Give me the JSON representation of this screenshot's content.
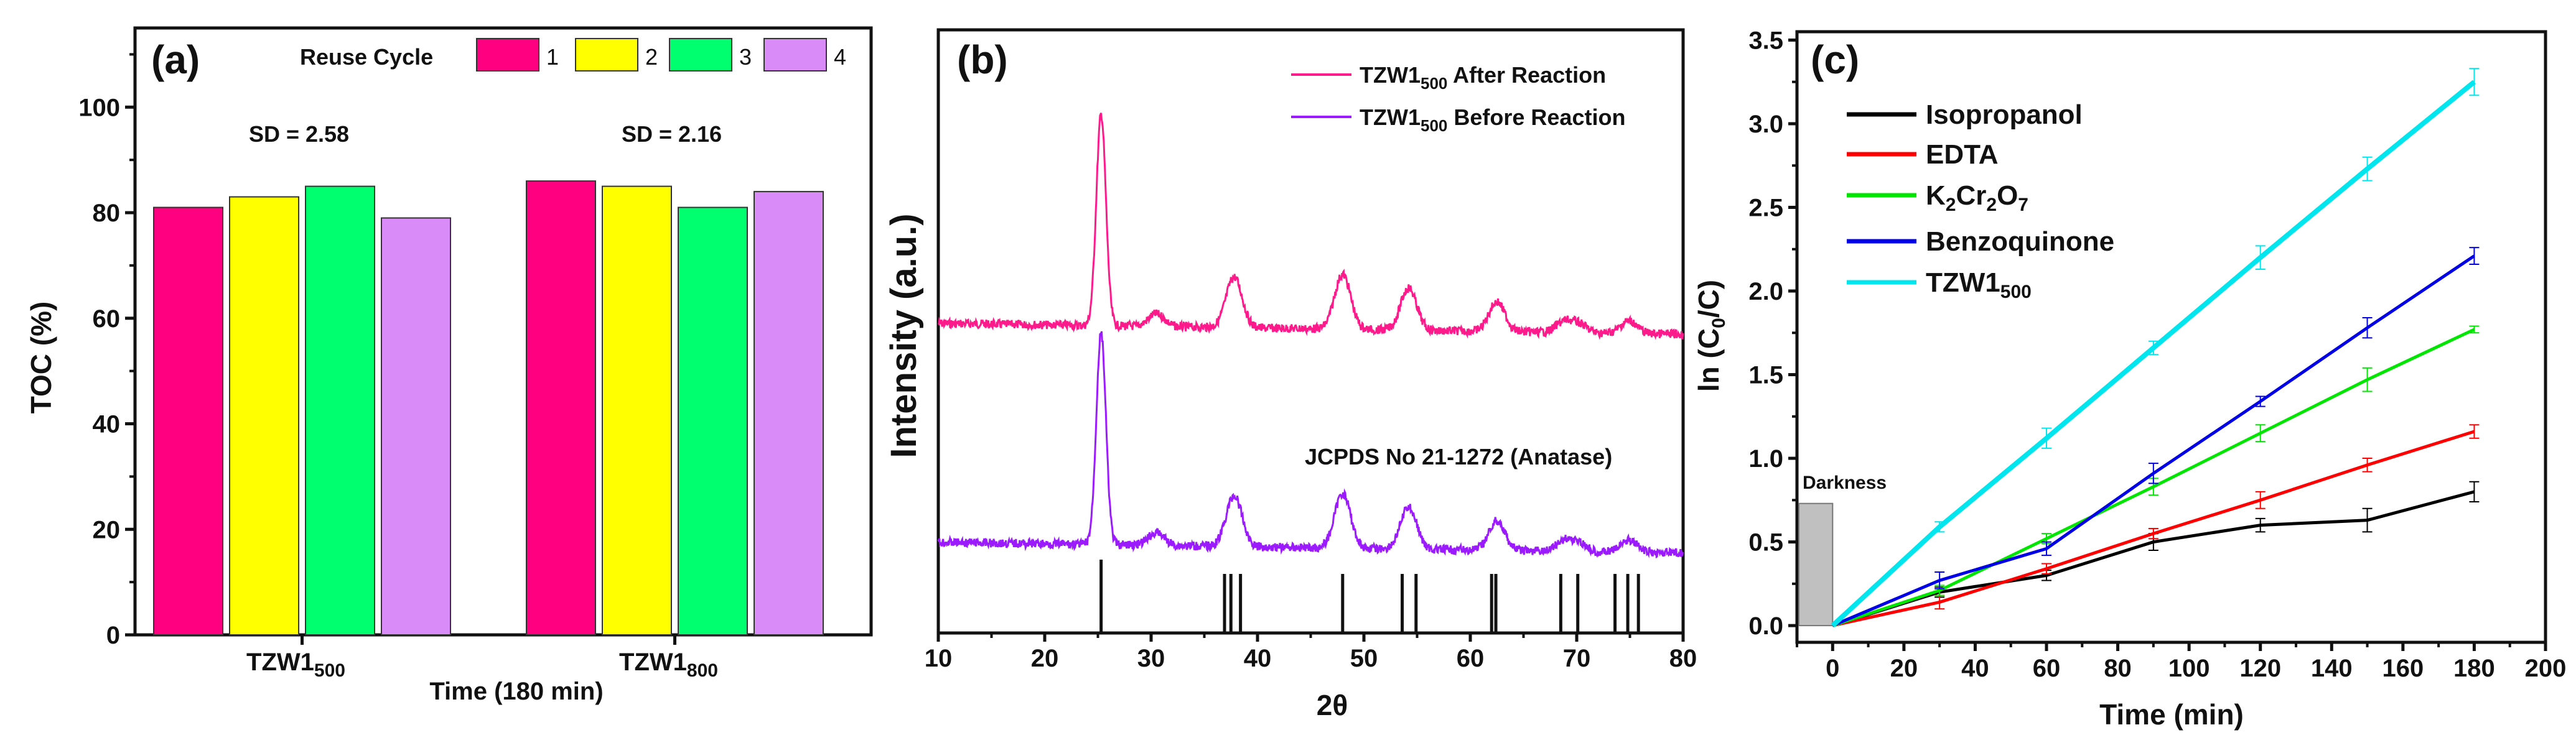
{
  "chart_data": [
    {
      "type": "bar",
      "panel_label": "(a)",
      "ylabel": "TOC (%)",
      "xlabel": "Time (180 min)",
      "categories": [
        {
          "base": "TZW1",
          "sub": "500"
        },
        {
          "base": "TZW1",
          "sub": "800"
        }
      ],
      "legend_title": "Reuse Cycle",
      "series": [
        {
          "name": "1",
          "color": "#ff0080",
          "values": [
            81,
            86
          ]
        },
        {
          "name": "2",
          "color": "#ffff00",
          "values": [
            83,
            85
          ]
        },
        {
          "name": "3",
          "color": "#00ff6e",
          "values": [
            85,
            81
          ]
        },
        {
          "name": "4",
          "color": "#d98cf8",
          "values": [
            79,
            84
          ]
        }
      ],
      "annotations": [
        "SD = 2.58",
        "SD = 2.16"
      ],
      "ylim": [
        0,
        115
      ],
      "yticks": [
        0,
        20,
        40,
        60,
        80,
        100
      ],
      "legend_position": "top"
    },
    {
      "type": "line",
      "panel_label": "(b)",
      "xlabel": "2θ",
      "ylabel": "Intensity (a.u.)",
      "xlim": [
        10,
        80
      ],
      "xticks": [
        10,
        20,
        30,
        40,
        50,
        60,
        70,
        80
      ],
      "series": [
        {
          "name": "After Reaction",
          "base": "TZW1",
          "sub": "500",
          "color": "#ff1a8c"
        },
        {
          "name": "Before Reaction",
          "base": "TZW1",
          "sub": "500",
          "color": "#9b1aff"
        }
      ],
      "peaks": [
        [
          25.3,
          100
        ],
        [
          30.5,
          6
        ],
        [
          37.8,
          24
        ],
        [
          48.0,
          26
        ],
        [
          54.2,
          20
        ],
        [
          62.5,
          14
        ],
        [
          68.8,
          5
        ],
        [
          70.2,
          4
        ],
        [
          74.9,
          6
        ]
      ],
      "reference_label": "JCPDS No 21-1272  (Anatase)",
      "reference_lines": [
        25.3,
        36.9,
        37.5,
        38.4,
        48.0,
        53.6,
        54.9,
        62.0,
        62.4,
        68.5,
        70.1,
        73.6,
        74.8,
        75.8
      ],
      "legend_position": "top-right"
    },
    {
      "type": "line",
      "panel_label": "(c)",
      "xlabel": "Time (min)",
      "ylabel_base": "ln (C",
      "ylabel_sub": "0",
      "ylabel_end": "/C)",
      "xlim": [
        -10,
        200
      ],
      "ylim": [
        -0.1,
        3.55
      ],
      "xticks": [
        0,
        20,
        40,
        60,
        80,
        100,
        120,
        140,
        160,
        180,
        200
      ],
      "yticks": [
        "0.0",
        "0.5",
        "1.0",
        "1.5",
        "2.0",
        "2.5",
        "3.0",
        "3.5"
      ],
      "annotation": "Darkness",
      "darkness_range": {
        "x": [
          -10,
          0
        ],
        "y": [
          0,
          0.73
        ]
      },
      "x": [
        0,
        30,
        60,
        90,
        120,
        150,
        180
      ],
      "series": [
        {
          "name": "Isopropanol",
          "color": "#000000",
          "values": [
            0,
            0.2,
            0.3,
            0.5,
            0.6,
            0.63,
            0.8
          ],
          "err": [
            0,
            0.03,
            0.03,
            0.05,
            0.04,
            0.07,
            0.06
          ]
        },
        {
          "name": "EDTA",
          "color": "#ff0000",
          "values": [
            0,
            0.14,
            0.34,
            0.55,
            0.75,
            0.96,
            1.16
          ],
          "err": [
            0,
            0.04,
            0.03,
            0.03,
            0.05,
            0.04,
            0.04
          ]
        },
        {
          "name": "K2Cr2O7",
          "parts": [
            [
              "K",
              ""
            ],
            [
              "2",
              "sub"
            ],
            [
              "Cr",
              ""
            ],
            [
              "2",
              "sub"
            ],
            [
              "O",
              ""
            ],
            [
              "7",
              "sub"
            ]
          ],
          "color": "#00e600",
          "values": [
            0,
            0.21,
            0.52,
            0.83,
            1.15,
            1.47,
            1.77
          ],
          "err": [
            0,
            0.03,
            0.03,
            0.05,
            0.05,
            0.07,
            0.02
          ]
        },
        {
          "name": "Benzoquinone",
          "color": "#0000e6",
          "values": [
            0,
            0.27,
            0.46,
            0.91,
            1.34,
            1.78,
            2.21
          ],
          "err": [
            0,
            0.05,
            0.04,
            0.06,
            0.03,
            0.06,
            0.05
          ]
        },
        {
          "name": "TZW1500",
          "parts": [
            [
              "TZW1",
              ""
            ],
            [
              "500",
              "sub"
            ]
          ],
          "color": "#00e5ee",
          "values": [
            0,
            0.59,
            1.12,
            1.66,
            2.2,
            2.73,
            3.25
          ],
          "err": [
            0,
            0.03,
            0.06,
            0.04,
            0.07,
            0.07,
            0.08
          ]
        }
      ],
      "legend_position": "top-left"
    }
  ]
}
